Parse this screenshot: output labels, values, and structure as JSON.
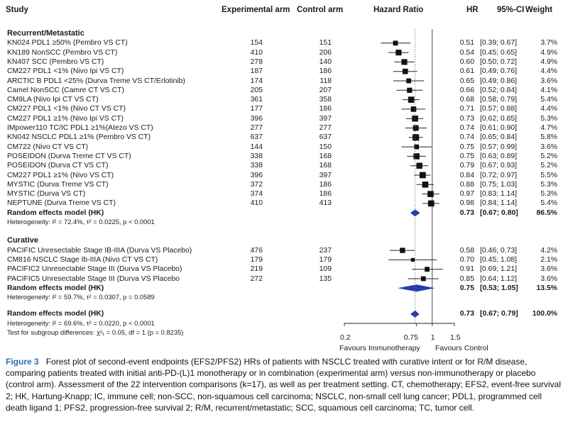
{
  "headers": {
    "study": "Study",
    "experimental": "Experimental arm",
    "control": "Control arm",
    "hazard_ratio": "Hazard Ratio",
    "hr": "HR",
    "ci": "95%-CI",
    "weight": "Weight"
  },
  "groups": [
    {
      "title": "Recurrent/Metastatic",
      "studies": [
        {
          "name": "KN024 PDL1 ≥50% (Pembro VS CT)",
          "exp": "154",
          "ctrl": "151",
          "hr": 0.51,
          "lo": 0.39,
          "hi": 0.67,
          "hr_text": "0.51",
          "ci_text": "[0.39; 0.67]",
          "weight": "3.7%"
        },
        {
          "name": "KN189 NonSCC (Pembro VS CT)",
          "exp": "410",
          "ctrl": "206",
          "hr": 0.54,
          "lo": 0.45,
          "hi": 0.65,
          "hr_text": "0.54",
          "ci_text": "[0.45; 0.65]",
          "weight": "4.9%"
        },
        {
          "name": "KN407  SCC (Pembro VS CT)",
          "exp": "278",
          "ctrl": "140",
          "hr": 0.6,
          "lo": 0.5,
          "hi": 0.72,
          "hr_text": "0.60",
          "ci_text": "[0.50; 0.72]",
          "weight": "4.9%"
        },
        {
          "name": "CM227 PDL1 <1% (Nivo Ipi VS CT)",
          "exp": "187",
          "ctrl": "186",
          "hr": 0.61,
          "lo": 0.49,
          "hi": 0.76,
          "hr_text": "0.61",
          "ci_text": "[0.49; 0.76]",
          "weight": "4.4%"
        },
        {
          "name": "ARCTIC B PDL1 <25% (Durva Treme  VS CT/Erlotinib)",
          "exp": "174",
          "ctrl": "118",
          "hr": 0.65,
          "lo": 0.49,
          "hi": 0.86,
          "hr_text": "0.65",
          "ci_text": "[0.49; 0.86]",
          "weight": "3.6%"
        },
        {
          "name": "Camel NonSCC (Camre CT VS CT)",
          "exp": "205",
          "ctrl": "207",
          "hr": 0.66,
          "lo": 0.52,
          "hi": 0.84,
          "hr_text": "0.66",
          "ci_text": "[0.52; 0.84]",
          "weight": "4.1%"
        },
        {
          "name": "CM9LA (Nivo Ipi CT VS CT)",
          "exp": "361",
          "ctrl": "358",
          "hr": 0.68,
          "lo": 0.58,
          "hi": 0.79,
          "hr_text": "0.68",
          "ci_text": "[0.58; 0.79]",
          "weight": "5.4%"
        },
        {
          "name": "CM227 PDL1 <1% (Nivo CT VS CT)",
          "exp": "177",
          "ctrl": "186",
          "hr": 0.71,
          "lo": 0.57,
          "hi": 0.88,
          "hr_text": "0.71",
          "ci_text": "[0.57; 0.88]",
          "weight": "4.4%"
        },
        {
          "name": "CM227 PDL1 ≥1% (Nivo Ipi VS CT)",
          "exp": "396",
          "ctrl": "397",
          "hr": 0.73,
          "lo": 0.62,
          "hi": 0.85,
          "hr_text": "0.73",
          "ci_text": "[0.62; 0.85]",
          "weight": "5.3%"
        },
        {
          "name": "IMpower110 TC/IC PDL1 ≥1%(Atezo VS CT)",
          "exp": "277",
          "ctrl": "277",
          "hr": 0.74,
          "lo": 0.61,
          "hi": 0.9,
          "hr_text": "0.74",
          "ci_text": "[0.61; 0.90]",
          "weight": "4.7%"
        },
        {
          "name": "KN042 NSCLC PDL1 ≥1% (Pembro VS CT)",
          "exp": "637",
          "ctrl": "637",
          "hr": 0.74,
          "lo": 0.65,
          "hi": 0.84,
          "hr_text": "0.74",
          "ci_text": "[0.65; 0.84]",
          "weight": "5.8%"
        },
        {
          "name": "CM722 (Nivo CT VS CT)",
          "exp": "144",
          "ctrl": "150",
          "hr": 0.75,
          "lo": 0.57,
          "hi": 0.99,
          "hr_text": "0.75",
          "ci_text": "[0.57; 0.99]",
          "weight": "3.6%"
        },
        {
          "name": "POSEIDON  (Durva Treme CT  VS CT)",
          "exp": "338",
          "ctrl": "168",
          "hr": 0.75,
          "lo": 0.63,
          "hi": 0.89,
          "hr_text": "0.75",
          "ci_text": "[0.63; 0.89]",
          "weight": "5.2%"
        },
        {
          "name": "POSEIDON  (Durva CT VS CT)",
          "exp": "338",
          "ctrl": "168",
          "hr": 0.79,
          "lo": 0.67,
          "hi": 0.93,
          "hr_text": "0.79",
          "ci_text": "[0.67; 0.93]",
          "weight": "5.2%"
        },
        {
          "name": "CM227 PDL1 ≥1% (Nivo VS CT)",
          "exp": "396",
          "ctrl": "397",
          "hr": 0.84,
          "lo": 0.72,
          "hi": 0.97,
          "hr_text": "0.84",
          "ci_text": "[0.72; 0.97]",
          "weight": "5.5%"
        },
        {
          "name": "MYSTIC  (Durva Treme VS CT)",
          "exp": "372",
          "ctrl": "186",
          "hr": 0.88,
          "lo": 0.75,
          "hi": 1.03,
          "hr_text": "0.88",
          "ci_text": "[0.75; 1.03]",
          "weight": "5.3%"
        },
        {
          "name": "MYSTIC  (Durva VS CT)",
          "exp": "374",
          "ctrl": "186",
          "hr": 0.97,
          "lo": 0.83,
          "hi": 1.14,
          "hr_text": "0.97",
          "ci_text": "[0.83; 1.14]",
          "weight": "5.3%"
        },
        {
          "name": "NEPTUNE  (Durva Treme VS CT)",
          "exp": "410",
          "ctrl": "413",
          "hr": 0.98,
          "lo": 0.84,
          "hi": 1.14,
          "hr_text": "0.98",
          "ci_text": "[0.84; 1.14]",
          "weight": "5.4%"
        }
      ],
      "summary": {
        "label": "Random effects model (HK)",
        "hr": 0.73,
        "lo": 0.67,
        "hi": 0.8,
        "hr_text": "0.73",
        "ci_text": "[0.67; 0.80]",
        "weight": "86.5%"
      },
      "heterogeneity": "Heterogeneity: I² = 72.4%, τ² = 0.0225, p < 0.0001"
    },
    {
      "title": "Curative",
      "studies": [
        {
          "name": "PACIFIC Unresectable Stage IB-IIIA (Durva VS Placebo)",
          "exp": "476",
          "ctrl": "237",
          "hr": 0.58,
          "lo": 0.46,
          "hi": 0.73,
          "hr_text": "0.58",
          "ci_text": "[0.46; 0.73]",
          "weight": "4.2%"
        },
        {
          "name": "CM816 NSCLC Stage Ib-IIIA (Nivo CT VS CT)",
          "exp": "179",
          "ctrl": "179",
          "hr": 0.7,
          "lo": 0.45,
          "hi": 1.08,
          "hr_text": "0.70",
          "ci_text": "[0.45; 1.08]",
          "weight": "2.1%"
        },
        {
          "name": "PACIFIC2 Unresectable Stage III (Durva VS Placebo)",
          "exp": "219",
          "ctrl": "109",
          "hr": 0.91,
          "lo": 0.69,
          "hi": 1.21,
          "hr_text": "0.91",
          "ci_text": "[0.69; 1.21]",
          "weight": "3.6%"
        },
        {
          "name": "PACIFIC5 Unresectable Stage III (Durva VS Placebo",
          "exp": "272",
          "ctrl": "135",
          "hr": 0.85,
          "lo": 0.64,
          "hi": 1.12,
          "hr_text": "0.85",
          "ci_text": "[0.64; 1.12]",
          "weight": "3.6%"
        }
      ],
      "summary": {
        "label": "Random effects model (HK)",
        "hr": 0.75,
        "lo": 0.53,
        "hi": 1.05,
        "hr_text": "0.75",
        "ci_text": "[0.53; 1.05]",
        "weight": "13.5%"
      },
      "heterogeneity": "Heterogeneity: I² = 59.7%, τ² = 0.0307, p = 0.0589"
    }
  ],
  "overall": {
    "label": "Random effects model (HK)",
    "hr": 0.73,
    "lo": 0.67,
    "hi": 0.79,
    "hr_text": "0.73",
    "ci_text": "[0.67; 0.79]",
    "weight": "100.0%",
    "heterogeneity": "Heterogeneity: I² = 69.6%, τ² = 0.0220, p < 0.0001",
    "subgroup_test": "Test for subgroup differences: χ²₁ = 0.05, df = 1 (p = 0.8235)"
  },
  "chart_data": {
    "type": "scatter",
    "xscale": "log",
    "xlim": [
      0.2,
      1.5
    ],
    "ticks": [
      0.2,
      0.75,
      1,
      1.5
    ],
    "tick_labels": [
      "0.2",
      "0.75",
      "1",
      "1.5"
    ],
    "reference_line": 1,
    "dotted_line": 0.73,
    "favours_left": "Favours Immunotherapy",
    "favours_right": "Favours Control"
  },
  "caption": {
    "label": "Figure 3",
    "text": "Forest plot of second-event endpoints (EFS2/PFS2) HRs of patients with NSCLC treated with curative intent or for R/M disease, comparing patients treated with initial anti-PD-(L)1 monotherapy or in combination (experimental arm) versus non-immunotherapy or placebo (control arm). Assessment of the 22 intervention comparisons (k=17), as well as per treatment setting. CT, chemotherapy; EFS2, event-free survival 2; HK, Hartung-Knapp; IC, immune cell; non-SCC, non-squamous cell carcinoma; NSCLC, non-small cell lung cancer; PDL1, programmed cell death ligand 1; PFS2, progression-free survival 2; R/M, recurrent/metastatic; SCC, squamous cell carcinoma; TC, tumor cell."
  },
  "colors": {
    "box": "#111111",
    "diamond": "#1f3fb0",
    "caption_label": "#2f6cb2"
  }
}
